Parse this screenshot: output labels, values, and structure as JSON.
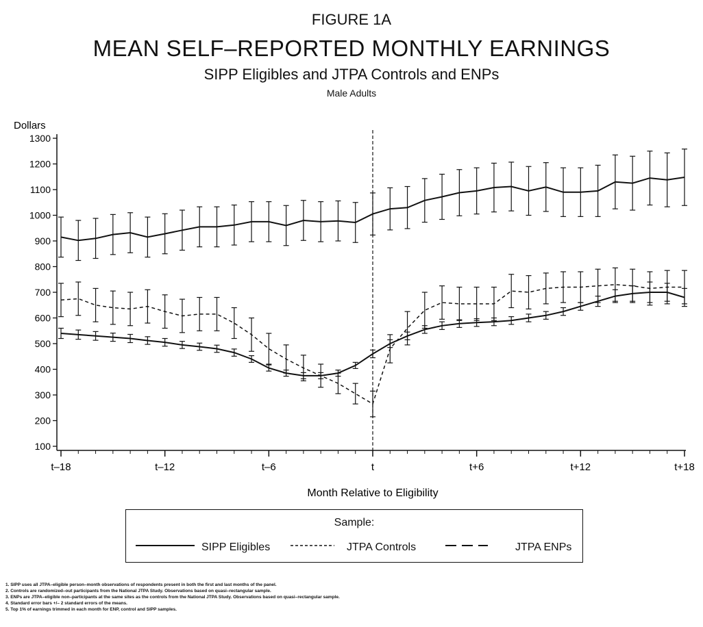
{
  "figure_label": "FIGURE 1A",
  "title": "MEAN SELF–REPORTED MONTHLY EARNINGS",
  "subtitle": "SIPP Eligibles and JTPA Controls and ENPs",
  "subsubtitle": "Male Adults",
  "legend": {
    "title": "Sample:",
    "items": [
      "SIPP Eligibles",
      "JTPA Controls",
      "JTPA ENPs"
    ]
  },
  "footnotes": [
    "1.  SIPP uses all JTPA–eligible person–month observations of respondents present in both the first and last months of the panel.",
    "2.  Controls are randomized–out participants from the National JTPA Study.  Observations based on quasi–rectangular sample.",
    "3.  ENPs are JTPA–eligible non–participants at the same sites as the controls from the National JTPA Study.  Observations based on quasi–rectangular sample.",
    "4.  Standard error bars  +/–  2 standard errors of the means.",
    "5.  Top 1% of earnings trimmed in each month for ENP, control and SIPP samples."
  ],
  "chart_data": {
    "type": "line",
    "xlabel": "Month Relative to Eligibility",
    "ylabel": "Dollars",
    "ylim": [
      100,
      1300
    ],
    "xlim": [
      -18,
      18
    ],
    "yticks": [
      100,
      200,
      300,
      400,
      500,
      600,
      700,
      800,
      900,
      1000,
      1100,
      1200,
      1300
    ],
    "xticks": [
      {
        "value": -18,
        "label": "t–18"
      },
      {
        "value": -12,
        "label": "t–12"
      },
      {
        "value": -6,
        "label": "t–6"
      },
      {
        "value": 0,
        "label": "t"
      },
      {
        "value": 6,
        "label": "t+6"
      },
      {
        "value": 12,
        "label": "t+12"
      },
      {
        "value": 18,
        "label": "t+18"
      }
    ],
    "vertical_reference_line": 0,
    "error_bars": "+/- 2 standard errors",
    "series": [
      {
        "name": "SIPP Eligibles",
        "style": "solid",
        "x": [
          -18,
          -17,
          -16,
          -15,
          -14,
          -13,
          -12,
          -11,
          -10,
          -9,
          -8,
          -7,
          -6,
          -5,
          -4,
          -3,
          -2,
          -1,
          0,
          1,
          2,
          3,
          4,
          5,
          6,
          7,
          8,
          9,
          10,
          11,
          12,
          13,
          14,
          15,
          16,
          17,
          18
        ],
        "y": [
          540,
          535,
          530,
          525,
          520,
          512,
          505,
          495,
          488,
          480,
          465,
          440,
          405,
          385,
          375,
          375,
          385,
          415,
          460,
          500,
          530,
          555,
          570,
          578,
          582,
          585,
          590,
          600,
          610,
          625,
          645,
          665,
          685,
          695,
          700,
          700,
          680
        ],
        "err": [
          20,
          18,
          17,
          16,
          16,
          15,
          15,
          14,
          14,
          14,
          14,
          13,
          12,
          12,
          12,
          12,
          12,
          12,
          15,
          15,
          15,
          15,
          15,
          15,
          15,
          15,
          15,
          15,
          15,
          15,
          15,
          20,
          25,
          30,
          40,
          35,
          35
        ]
      },
      {
        "name": "JTPA Controls",
        "style": "dashed",
        "x": [
          -18,
          -17,
          -16,
          -15,
          -14,
          -13,
          -12,
          -11,
          -10,
          -9,
          -8,
          -7,
          -6,
          -5,
          -4,
          -3,
          -2,
          -1,
          0,
          1,
          2,
          3,
          4,
          5,
          6,
          7,
          8,
          9,
          10,
          11,
          12,
          13,
          14,
          15,
          16,
          17,
          18
        ],
        "y": [
          670,
          675,
          650,
          640,
          635,
          645,
          625,
          608,
          615,
          615,
          580,
          535,
          480,
          440,
          405,
          375,
          345,
          305,
          265,
          480,
          560,
          630,
          660,
          655,
          655,
          655,
          705,
          700,
          715,
          720,
          720,
          725,
          730,
          725,
          715,
          720,
          720
        ],
        "err": [
          65,
          65,
          65,
          65,
          65,
          65,
          65,
          65,
          65,
          65,
          60,
          65,
          60,
          55,
          50,
          45,
          40,
          40,
          50,
          55,
          65,
          70,
          65,
          65,
          65,
          65,
          65,
          65,
          60,
          60,
          60,
          65,
          65,
          65,
          65,
          65,
          65
        ]
      },
      {
        "name": "JTPA ENPs",
        "style": "long-dash",
        "x": [
          -18,
          -17,
          -16,
          -15,
          -14,
          -13,
          -12,
          -11,
          -10,
          -9,
          -8,
          -7,
          -6,
          -5,
          -4,
          -3,
          -2,
          -1,
          0,
          1,
          2,
          3,
          4,
          5,
          6,
          7,
          8,
          9,
          10,
          11,
          12,
          13,
          14,
          15,
          16,
          17,
          18
        ],
        "y": [
          915,
          902,
          910,
          925,
          932,
          915,
          928,
          942,
          955,
          955,
          962,
          975,
          975,
          960,
          980,
          975,
          978,
          972,
          1005,
          1025,
          1030,
          1058,
          1072,
          1088,
          1095,
          1108,
          1112,
          1095,
          1110,
          1090,
          1090,
          1095,
          1130,
          1125,
          1145,
          1138,
          1148
        ],
        "err": [
          78,
          78,
          78,
          78,
          78,
          78,
          78,
          78,
          78,
          78,
          78,
          78,
          78,
          78,
          78,
          78,
          78,
          78,
          82,
          82,
          82,
          85,
          88,
          90,
          90,
          95,
          95,
          95,
          95,
          95,
          95,
          100,
          105,
          105,
          105,
          105,
          110
        ]
      }
    ]
  }
}
